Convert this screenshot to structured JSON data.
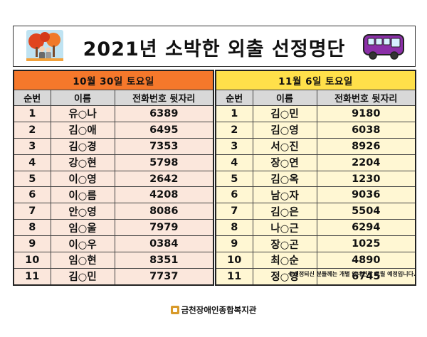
{
  "title": "2021년 소박한 외출 선정명단",
  "notice": "※선정되신 분들께는 개별 안내연락 드릴 예정입니다.",
  "footer": {
    "org_name": "금천장애인종합복지관"
  },
  "columns": {
    "seq": "순번",
    "name": "이름",
    "phone": "전화번호 뒷자리"
  },
  "left": {
    "date": "10월 30일 토요일",
    "rows": [
      {
        "no": "1",
        "name": "유○나",
        "phone": "6389"
      },
      {
        "no": "2",
        "name": "김○애",
        "phone": "6495"
      },
      {
        "no": "3",
        "name": "김○경",
        "phone": "7353"
      },
      {
        "no": "4",
        "name": "강○현",
        "phone": "5798"
      },
      {
        "no": "5",
        "name": "이○영",
        "phone": "2642"
      },
      {
        "no": "6",
        "name": "이○름",
        "phone": "4208"
      },
      {
        "no": "7",
        "name": "안○영",
        "phone": "8086"
      },
      {
        "no": "8",
        "name": "임○울",
        "phone": "7979"
      },
      {
        "no": "9",
        "name": "이○우",
        "phone": "0384"
      },
      {
        "no": "10",
        "name": "임○현",
        "phone": "8351"
      },
      {
        "no": "11",
        "name": "김○민",
        "phone": "7737"
      }
    ]
  },
  "right": {
    "date": "11월 6일 토요일",
    "rows": [
      {
        "no": "1",
        "name": "김○민",
        "phone": "9180"
      },
      {
        "no": "2",
        "name": "김○영",
        "phone": "6038"
      },
      {
        "no": "3",
        "name": "서○진",
        "phone": "8926"
      },
      {
        "no": "4",
        "name": "장○연",
        "phone": "2204"
      },
      {
        "no": "5",
        "name": "김○옥",
        "phone": "1230"
      },
      {
        "no": "6",
        "name": "남○자",
        "phone": "9036"
      },
      {
        "no": "7",
        "name": "김○은",
        "phone": "5504"
      },
      {
        "no": "8",
        "name": "나○근",
        "phone": "6294"
      },
      {
        "no": "9",
        "name": "장○곤",
        "phone": "1025"
      },
      {
        "no": "10",
        "name": "최○순",
        "phone": "4890"
      },
      {
        "no": "11",
        "name": "정○영",
        "phone": "6745"
      }
    ]
  },
  "colors": {
    "left_header": "#f5782b",
    "right_header": "#ffe04a",
    "left_cells": "#fbe7dc",
    "right_cells": "#fff7d3",
    "bus": "#8b2fa8"
  },
  "icons": {
    "title_left": "autumn-people-icon",
    "title_right": "bus-icon",
    "footer": "org-logo-icon"
  }
}
